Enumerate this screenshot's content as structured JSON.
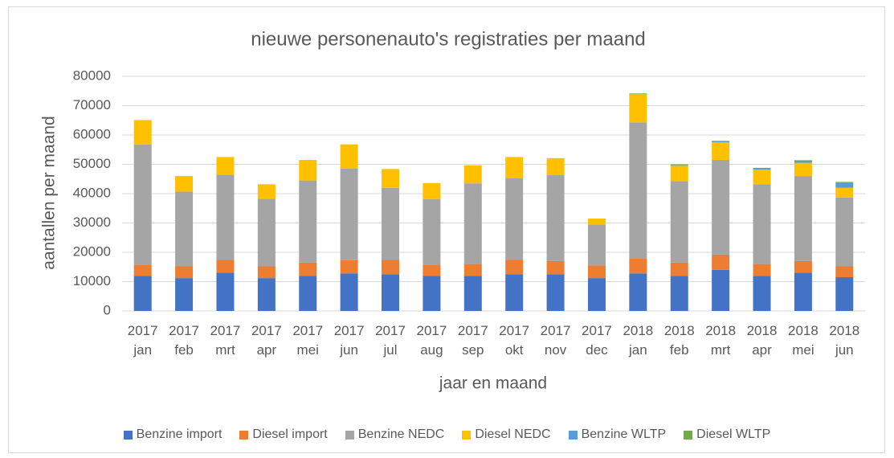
{
  "chart_data": {
    "type": "stacked_bar",
    "title": "nieuwe personenauto's registraties per maand",
    "x_label": "jaar en maand",
    "y_label": "aantallen per maand",
    "categories": [
      "2017 jan",
      "2017 feb",
      "2017 mrt",
      "2017 apr",
      "2017 mei",
      "2017 jun",
      "2017 jul",
      "2017 aug",
      "2017 sep",
      "2017 okt",
      "2017 nov",
      "2017 dec",
      "2018 jan",
      "2018 feb",
      "2018 mrt",
      "2018 apr",
      "2018 mei",
      "2018 jun"
    ],
    "series": [
      {
        "name": "Benzine import",
        "color": "#4472c4",
        "values": [
          12000,
          11200,
          13000,
          11200,
          12000,
          12800,
          12500,
          12000,
          12000,
          12500,
          12500,
          11200,
          12800,
          12000,
          14000,
          12000,
          13000,
          11500
        ]
      },
      {
        "name": "Diesel import",
        "color": "#ed7d31",
        "values": [
          3800,
          4000,
          4500,
          4000,
          4500,
          4500,
          5000,
          3800,
          4000,
          5000,
          4500,
          4300,
          5000,
          4500,
          5200,
          4000,
          4000,
          3700
        ]
      },
      {
        "name": "Benzine NEDC",
        "color": "#a5a5a5",
        "values": [
          41000,
          25500,
          29000,
          23000,
          28000,
          31200,
          24500,
          22300,
          27500,
          27700,
          29300,
          14000,
          46500,
          27800,
          32300,
          27200,
          29000,
          23500
        ]
      },
      {
        "name": "Diesel NEDC",
        "color": "#ffc000",
        "values": [
          8300,
          5300,
          6000,
          5000,
          7000,
          8300,
          6400,
          5500,
          6200,
          7300,
          5800,
          2000,
          9700,
          5200,
          6000,
          5000,
          4500,
          3300
        ]
      },
      {
        "name": "Benzine WLTP",
        "color": "#5b9bd5",
        "values": [
          0,
          0,
          0,
          0,
          0,
          0,
          0,
          0,
          0,
          0,
          0,
          0,
          0,
          300,
          300,
          300,
          600,
          1800
        ]
      },
      {
        "name": "Diesel WLTP",
        "color": "#70ad47",
        "values": [
          0,
          0,
          0,
          0,
          0,
          0,
          0,
          0,
          0,
          0,
          0,
          0,
          200,
          200,
          200,
          300,
          300,
          200
        ]
      }
    ],
    "ylim": [
      0,
      80000
    ],
    "yticks": [
      0,
      10000,
      20000,
      30000,
      40000,
      50000,
      60000,
      70000,
      80000
    ],
    "grid": true,
    "legend": "bottom"
  }
}
